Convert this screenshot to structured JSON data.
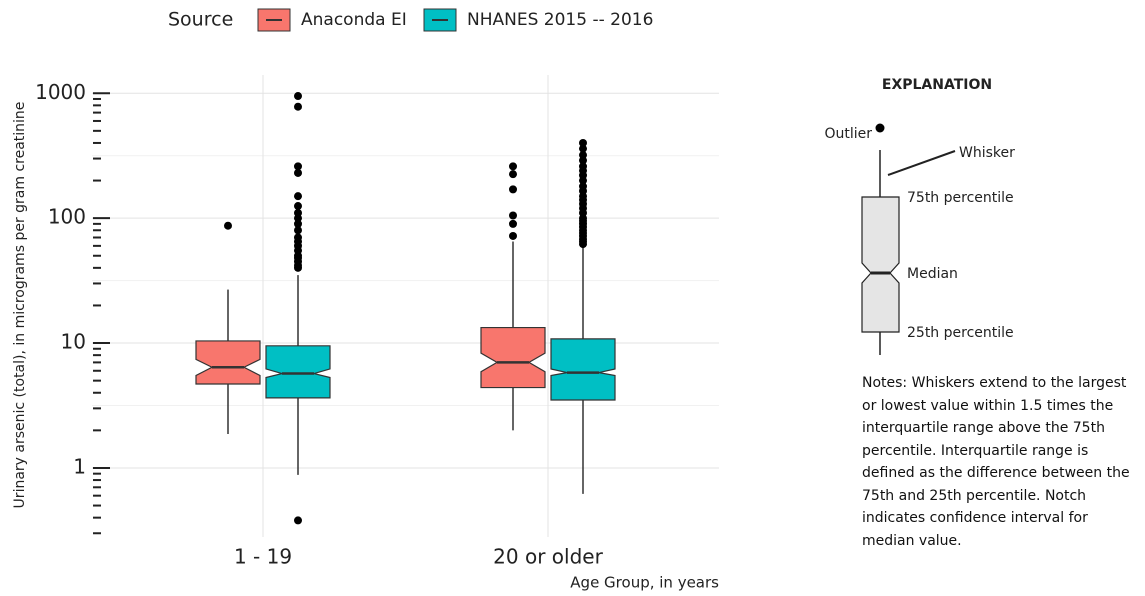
{
  "chart_data": {
    "type": "box",
    "legend_title": "Source",
    "x_label": "Age Group, in years",
    "y_label": "Urinary arsenic (total), in micrograms per gram creatinine",
    "categories": [
      "1 - 19",
      "20 or older"
    ],
    "log_y": true,
    "grid": true,
    "ylim": [
      0.28,
      1400
    ],
    "yticks": [
      1,
      10,
      100,
      1000
    ],
    "minor_yticks": [
      0.3,
      0.4,
      0.5,
      0.6,
      0.7,
      0.8,
      0.9,
      2,
      3,
      4,
      5,
      6,
      7,
      8,
      9,
      20,
      30,
      40,
      50,
      60,
      70,
      80,
      90,
      200,
      300,
      400,
      500,
      600,
      700,
      800,
      900
    ],
    "series": [
      {
        "name": "Anaconda EI",
        "color": "#F8766D",
        "boxes": [
          {
            "low": 1.87,
            "q1": 4.7,
            "median": 6.4,
            "q3": 10.4,
            "high": 26.8,
            "notch_low": 5.5,
            "notch_high": 7.4,
            "outliers": [
              87
            ]
          },
          {
            "low": 2.0,
            "q1": 4.4,
            "median": 7.0,
            "q3": 13.3,
            "high": 65,
            "notch_low": 5.9,
            "notch_high": 8.3,
            "outliers": [
              72,
              90,
              105,
              170,
              225,
              260
            ]
          }
        ]
      },
      {
        "name": "NHANES 2015 -- 2016",
        "color": "#00BFC4",
        "boxes": [
          {
            "low": 0.88,
            "q1": 3.64,
            "median": 5.7,
            "q3": 9.5,
            "high": 35,
            "notch_low": 5.3,
            "notch_high": 6.2,
            "outliers": [
              0.38,
              40,
              42,
              45,
              48,
              50,
              55,
              60,
              65,
              70,
              80,
              90,
              100,
              110,
              125,
              150,
              230,
              260,
              780,
              950
            ]
          },
          {
            "low": 0.62,
            "q1": 3.5,
            "median": 5.8,
            "q3": 10.8,
            "high": 60,
            "notch_low": 5.5,
            "notch_high": 6.2,
            "outliers": [
              62,
              65,
              68,
              72,
              76,
              80,
              85,
              90,
              95,
              100,
              110,
              120,
              130,
              140,
              150,
              165,
              180,
              200,
              220,
              240,
              260,
              290,
              320,
              360,
              400
            ]
          }
        ]
      }
    ]
  },
  "explanation": {
    "title": "EXPLANATION",
    "outlier": "Outlier",
    "whisker": "Whisker",
    "q3": "75th percentile",
    "median": "Median",
    "q1": "25th percentile",
    "notes": "Notes: Whiskers extend to the largest or lowest value within 1.5 times the interquartile range above the 75th percentile. Interquartile range is defined as the difference between the 75th and 25th percentile. Notch indicates confidence interval for median value."
  }
}
